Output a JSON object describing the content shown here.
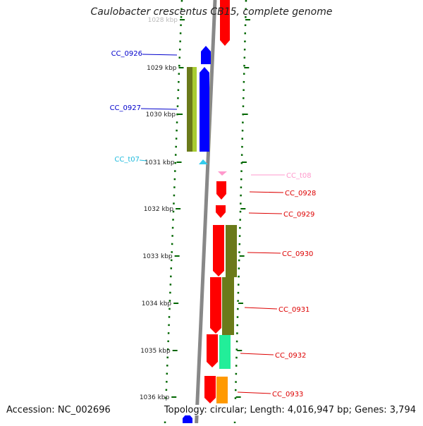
{
  "title": "Caulobacter crescentus CB15, complete genome",
  "accession": "Accession: NC_002696",
  "summary": "Topology: circular; Length: 4,016,947 bp; Genes: 3,794",
  "colors": {
    "minus_cds": "#0000ff",
    "plus_cds": "#ff0000",
    "minus_trna": "#33ccee",
    "plus_trna": "#ff99cc",
    "feature_olive": "#6b7a1a",
    "feature_green": "#a8cc33",
    "feature_teal": "#22ee99",
    "feature_orange": "#ff9900",
    "backbone": "#888888",
    "tick": "#006600"
  },
  "ticks": [
    {
      "label": "1028 kbp"
    },
    {
      "label": "1029 kbp"
    },
    {
      "label": "1030 kbp"
    },
    {
      "label": "1031 kbp"
    },
    {
      "label": "1032 kbp"
    },
    {
      "label": "1033 kbp"
    },
    {
      "label": "1034 kbp"
    },
    {
      "label": "1035 kbp"
    },
    {
      "label": "1036 kbp"
    }
  ],
  "left_labels": [
    {
      "text": "CC_0926",
      "color": "#0000cc"
    },
    {
      "text": "CC_0927",
      "color": "#0000cc"
    },
    {
      "text": "CC_t07",
      "color": "#22bbdd"
    }
  ],
  "right_labels": [
    {
      "text": "CC_t08",
      "color": "#ff99cc"
    },
    {
      "text": "CC_0928",
      "color": "#dd0000"
    },
    {
      "text": "CC_0929",
      "color": "#dd0000"
    },
    {
      "text": "CC_0930",
      "color": "#dd0000"
    },
    {
      "text": "CC_0931",
      "color": "#dd0000"
    },
    {
      "text": "CC_0932",
      "color": "#dd0000"
    },
    {
      "text": "CC_0933",
      "color": "#dd0000"
    }
  ]
}
